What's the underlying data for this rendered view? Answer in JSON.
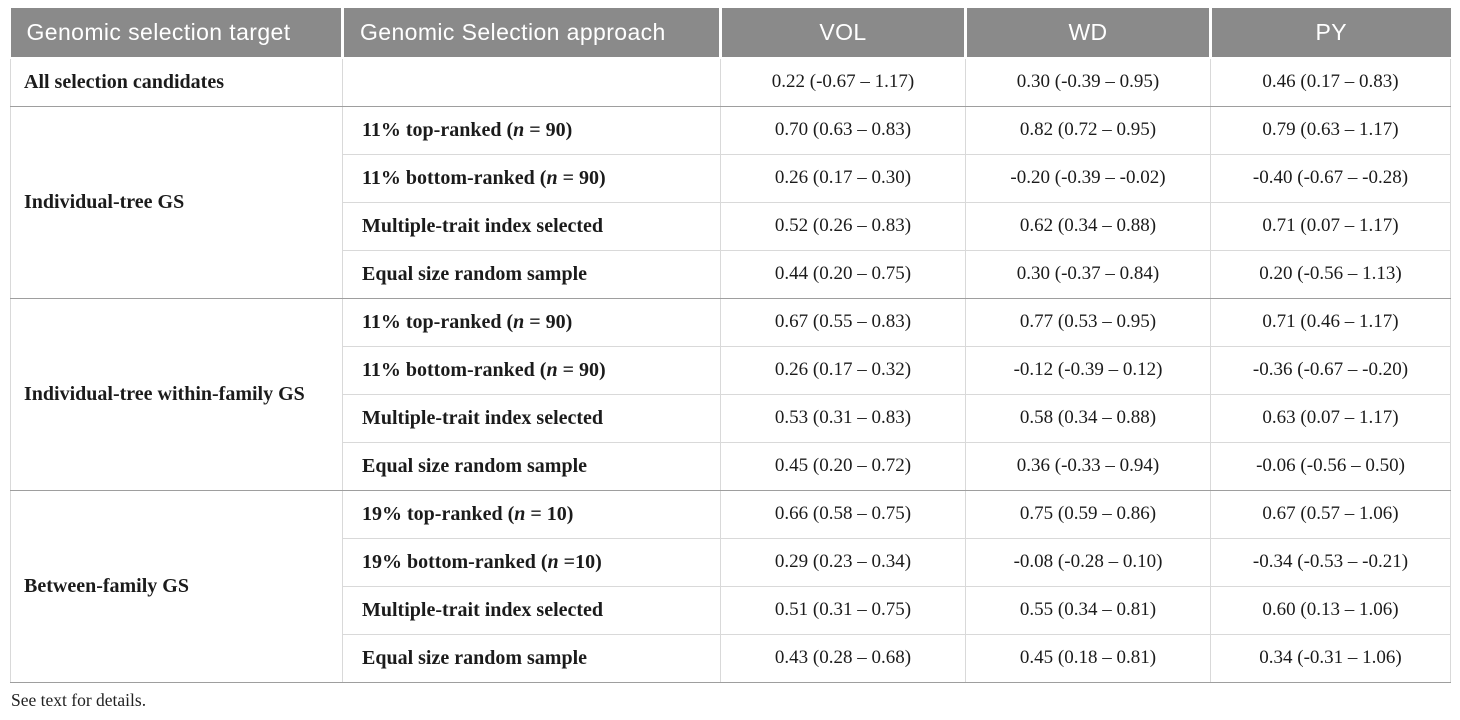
{
  "table": {
    "columns": [
      "Genomic selection target",
      "Genomic Selection approach",
      "VOL",
      "WD",
      "PY"
    ],
    "groups": [
      {
        "target": "All selection candidates",
        "rows": [
          {
            "approach": {
              "pre": "",
              "n": "",
              "post": ""
            },
            "values": [
              "0.22 (-0.67 – 1.17)",
              "0.30 (-0.39 – 0.95)",
              "0.46 (0.17 – 0.83)"
            ]
          }
        ]
      },
      {
        "target": "Individual-tree GS",
        "rows": [
          {
            "approach": {
              "pre": "11% top-ranked (",
              "n": "n",
              "post": " = 90)"
            },
            "values": [
              "0.70 (0.63 – 0.83)",
              "0.82 (0.72 – 0.95)",
              "0.79 (0.63 – 1.17)"
            ]
          },
          {
            "approach": {
              "pre": "11% bottom-ranked (",
              "n": "n",
              "post": " = 90)"
            },
            "values": [
              "0.26 (0.17 – 0.30)",
              "-0.20 (-0.39 – -0.02)",
              "-0.40 (-0.67 – -0.28)"
            ]
          },
          {
            "approach": {
              "pre": "Multiple-trait index selected",
              "n": "",
              "post": ""
            },
            "values": [
              "0.52 (0.26 – 0.83)",
              "0.62 (0.34 – 0.88)",
              "0.71 (0.07 – 1.17)"
            ]
          },
          {
            "approach": {
              "pre": "Equal size random sample",
              "n": "",
              "post": ""
            },
            "values": [
              "0.44 (0.20 – 0.75)",
              "0.30 (-0.37 – 0.84)",
              "0.20 (-0.56 – 1.13)"
            ]
          }
        ]
      },
      {
        "target": "Individual-tree within-family GS",
        "rows": [
          {
            "approach": {
              "pre": "11% top-ranked (",
              "n": "n",
              "post": " = 90)"
            },
            "values": [
              "0.67 (0.55 – 0.83)",
              "0.77 (0.53 – 0.95)",
              "0.71 (0.46 – 1.17)"
            ]
          },
          {
            "approach": {
              "pre": "11% bottom-ranked (",
              "n": "n",
              "post": " = 90)"
            },
            "values": [
              "0.26 (0.17 – 0.32)",
              "-0.12 (-0.39 – 0.12)",
              "-0.36 (-0.67 – -0.20)"
            ]
          },
          {
            "approach": {
              "pre": "Multiple-trait index selected",
              "n": "",
              "post": ""
            },
            "values": [
              "0.53 (0.31 – 0.83)",
              "0.58 (0.34 – 0.88)",
              "0.63 (0.07 – 1.17)"
            ]
          },
          {
            "approach": {
              "pre": "Equal size random sample",
              "n": "",
              "post": ""
            },
            "values": [
              "0.45 (0.20 – 0.72)",
              "0.36 (-0.33 – 0.94)",
              "-0.06 (-0.56 – 0.50)"
            ]
          }
        ]
      },
      {
        "target": "Between-family GS",
        "rows": [
          {
            "approach": {
              "pre": "19% top-ranked (",
              "n": "n",
              "post": " = 10)"
            },
            "values": [
              "0.66 (0.58 – 0.75)",
              "0.75 (0.59 – 0.86)",
              "0.67 (0.57 – 1.06)"
            ]
          },
          {
            "approach": {
              "pre": "19% bottom-ranked (",
              "n": "n",
              "post": " =10)"
            },
            "values": [
              "0.29 (0.23 – 0.34)",
              "-0.08 (-0.28 – 0.10)",
              "-0.34 (-0.53 – -0.21)"
            ]
          },
          {
            "approach": {
              "pre": "Multiple-trait index selected",
              "n": "",
              "post": ""
            },
            "values": [
              "0.51 (0.31 – 0.75)",
              "0.55 (0.34 – 0.81)",
              "0.60 (0.13 – 1.06)"
            ]
          },
          {
            "approach": {
              "pre": "Equal size random sample",
              "n": "",
              "post": ""
            },
            "values": [
              "0.43 (0.28 – 0.68)",
              "0.45 (0.18 – 0.81)",
              "0.34 (-0.31 – 1.06)"
            ]
          }
        ]
      }
    ],
    "footnote": "See text for details."
  },
  "style": {
    "header_bg": "#8a8a8a",
    "header_text": "#ffffff",
    "border_light": "#d9d9d9",
    "border_dark": "#9e9e9e"
  }
}
